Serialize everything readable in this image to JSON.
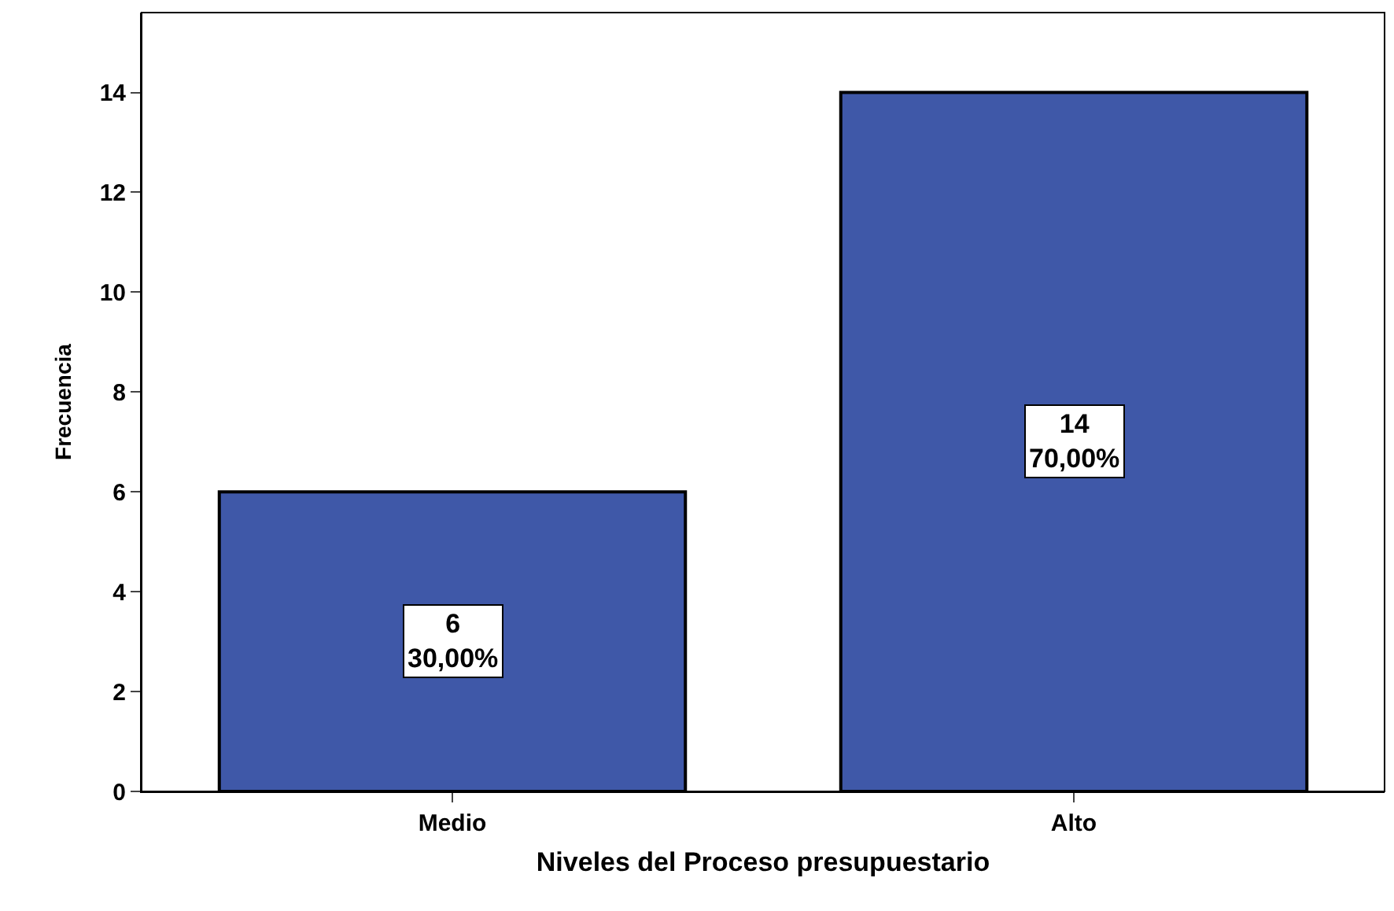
{
  "chart_data": {
    "type": "bar",
    "xlabel": "Niveles del Proceso presupuestario",
    "ylabel": "Frecuencia",
    "categories": [
      "Medio",
      "Alto"
    ],
    "values": [
      6,
      14
    ],
    "color": "#3f58a8",
    "value_labels": [
      "6\n30,00%",
      "14\n70,00%"
    ],
    "ylim": [
      0,
      15.6
    ],
    "yticks": [
      0,
      2,
      4,
      6,
      8,
      10,
      12,
      14
    ],
    "grid": false
  }
}
